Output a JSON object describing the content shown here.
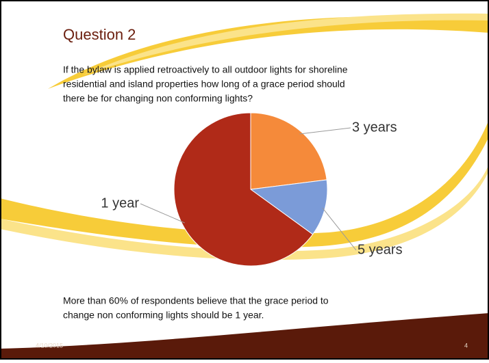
{
  "title": "Question 2",
  "question": [
    "If the bylaw is applied retroactively to all outdoor lights for shoreline",
    "residential and island properties how long of a grace period should",
    "there be for changing non conforming lights?"
  ],
  "note": [
    "More than 60% of respondents believe that the grace period to",
    "change non conforming lights should be 1 year."
  ],
  "date": "4/10/2015",
  "page": 4,
  "chart_data": {
    "type": "pie",
    "categories": [
      "3 years",
      "5 years",
      "1 year"
    ],
    "values": [
      23,
      12,
      65
    ],
    "colors": [
      "#f58a3a",
      "#7b9bd8",
      "#b02a18"
    ]
  }
}
